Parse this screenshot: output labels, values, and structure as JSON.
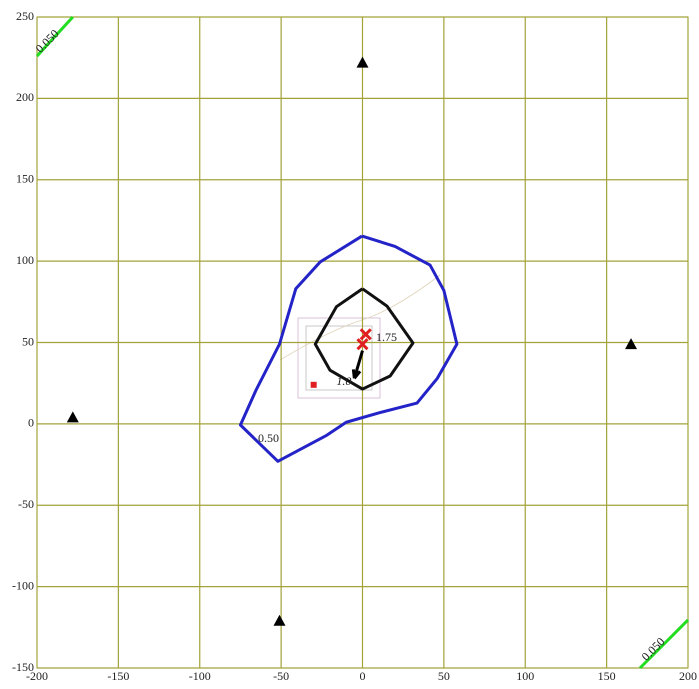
{
  "chart_data": {
    "type": "contour",
    "xlim": [
      -200,
      200
    ],
    "ylim": [
      -150,
      250
    ],
    "xticks": [
      -200,
      -150,
      -100,
      -50,
      0,
      50,
      100,
      150,
      200
    ],
    "yticks": [
      -150,
      -100,
      -50,
      0,
      50,
      100,
      150,
      200,
      250
    ],
    "grid": true,
    "grid_color": "#a3a33a",
    "contours": [
      {
        "label": "0.50",
        "color": "#2323c8",
        "x": [
          -0.3,
          20,
          41.5,
          50,
          58,
          46,
          33.5,
          11,
          -10,
          -22,
          -52,
          -75,
          -65.4,
          -51,
          -41,
          -26,
          -0.3
        ],
        "y": [
          115.4,
          109,
          97.6,
          82,
          49,
          28,
          12.8,
          7,
          1,
          -7,
          -23,
          -0.7,
          20.8,
          49,
          83,
          99.5,
          115.4
        ]
      },
      {
        "label": "1.75",
        "color": "#111111",
        "x": [
          0,
          15,
          31,
          17,
          0,
          -20,
          -29,
          -16,
          0
        ],
        "y": [
          83,
          72.4,
          49.7,
          29.4,
          21.4,
          33,
          49,
          72,
          83
        ]
      },
      {
        "label": "0.050",
        "color": "#22dd22",
        "x": [
          -200,
          -178
        ],
        "y": [
          226,
          250
        ]
      },
      {
        "label": "0.050",
        "color": "#22dd22",
        "x": [
          170.5,
          200
        ],
        "y": [
          -150,
          -120.5
        ]
      }
    ],
    "stations": {
      "x": [
        -178,
        0,
        165,
        -51
      ],
      "y": [
        4,
        222,
        49,
        -121
      ],
      "color": "#000000"
    },
    "peaks": {
      "x": [
        2,
        0
      ],
      "y": [
        55,
        49
      ],
      "color": "#e02020"
    },
    "source": {
      "x": -30,
      "y": 24,
      "color": "#e02020"
    },
    "arrow": {
      "label": "1.0",
      "x": [
        0,
        -5
      ],
      "y": [
        45,
        28
      ]
    }
  }
}
